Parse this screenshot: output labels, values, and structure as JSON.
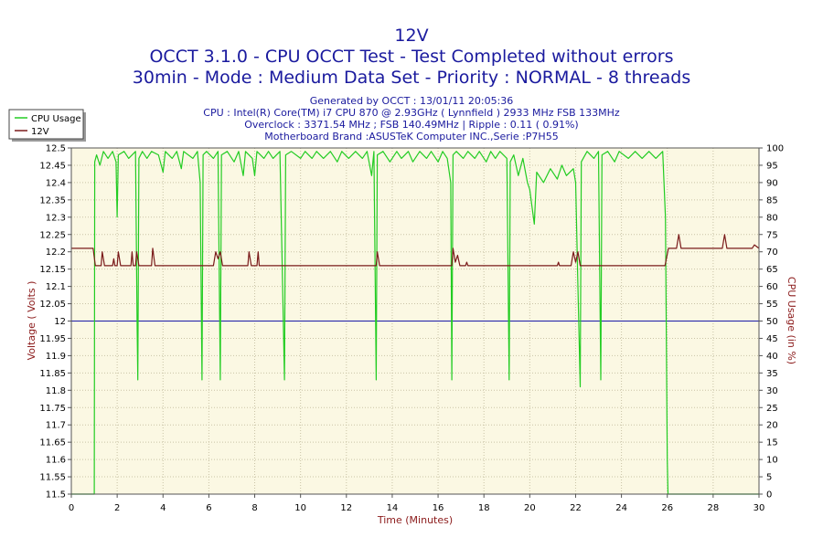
{
  "chart_data": {
    "type": "line",
    "title": "12V",
    "subtitle_lines": [
      "OCCT 3.1.0 - CPU OCCT Test - Test Completed without errors",
      "30min - Mode : Medium Data Set - Priority : NORMAL - 8 threads"
    ],
    "info_lines": [
      "Generated by OCCT : 13/01/11 20:05:36",
      "CPU : Intel(R) Core(TM) i7 CPU 870 @ 2.93GHz ( Lynnfield ) 2933 MHz FSB 133MHz",
      "Overclock : 3371.54 MHz ; FSB 140.49MHz | Ripple : 0.11 ( 0.91%)",
      "Motherboard Brand :ASUSTeK Computer INC.,Serie :P7H55"
    ],
    "xlabel": "Time (Minutes)",
    "ylabel": "Voltage ( Volts )",
    "y2label": "CPU Usage (in %)",
    "xlim": [
      0,
      30
    ],
    "ylim": [
      11.5,
      12.5
    ],
    "y2lim": [
      0,
      100
    ],
    "x_ticks": [
      "0",
      "2",
      "4",
      "6",
      "8",
      "10",
      "12",
      "14",
      "16",
      "18",
      "20",
      "22",
      "24",
      "26",
      "28",
      "30"
    ],
    "y_ticks": [
      "11.5",
      "11.55",
      "11.6",
      "11.65",
      "11.7",
      "11.75",
      "11.8",
      "11.85",
      "11.9",
      "11.95",
      "12",
      "12.05",
      "12.1",
      "12.15",
      "12.2",
      "12.25",
      "12.3",
      "12.35",
      "12.4",
      "12.45",
      "12.5"
    ],
    "y2_ticks": [
      "0",
      "5",
      "10",
      "15",
      "20",
      "25",
      "30",
      "35",
      "40",
      "45",
      "50",
      "55",
      "60",
      "65",
      "70",
      "75",
      "80",
      "85",
      "90",
      "95",
      "100"
    ],
    "reference_line": 12.0,
    "grid": true,
    "legend_position": "top-left",
    "series": [
      {
        "name": "CPU Usage",
        "axis": "right",
        "color": "#22cc22",
        "points": [
          [
            0,
            0
          ],
          [
            0.9,
            0
          ],
          [
            1.0,
            0
          ],
          [
            1.02,
            96
          ],
          [
            1.1,
            98
          ],
          [
            1.25,
            95
          ],
          [
            1.4,
            99
          ],
          [
            1.6,
            97
          ],
          [
            1.8,
            99
          ],
          [
            1.95,
            96
          ],
          [
            2.0,
            80
          ],
          [
            2.05,
            98
          ],
          [
            2.3,
            99
          ],
          [
            2.5,
            97
          ],
          [
            2.8,
            99
          ],
          [
            2.87,
            50
          ],
          [
            2.9,
            33
          ],
          [
            2.95,
            97
          ],
          [
            3.1,
            99
          ],
          [
            3.3,
            97
          ],
          [
            3.5,
            99
          ],
          [
            3.8,
            98
          ],
          [
            4.0,
            93
          ],
          [
            4.1,
            99
          ],
          [
            4.4,
            97
          ],
          [
            4.6,
            99
          ],
          [
            4.8,
            94
          ],
          [
            4.9,
            99
          ],
          [
            5.3,
            97
          ],
          [
            5.5,
            99
          ],
          [
            5.62,
            90
          ],
          [
            5.7,
            33
          ],
          [
            5.75,
            98
          ],
          [
            5.9,
            99
          ],
          [
            6.2,
            97
          ],
          [
            6.4,
            99
          ],
          [
            6.5,
            33
          ],
          [
            6.55,
            98
          ],
          [
            6.8,
            99
          ],
          [
            7.1,
            96
          ],
          [
            7.3,
            99
          ],
          [
            7.5,
            92
          ],
          [
            7.6,
            99
          ],
          [
            7.9,
            97
          ],
          [
            8.0,
            92
          ],
          [
            8.1,
            99
          ],
          [
            8.4,
            97
          ],
          [
            8.6,
            99
          ],
          [
            8.8,
            97
          ],
          [
            9.1,
            99
          ],
          [
            9.3,
            33
          ],
          [
            9.35,
            98
          ],
          [
            9.6,
            99
          ],
          [
            10.0,
            97
          ],
          [
            10.2,
            99
          ],
          [
            10.5,
            97
          ],
          [
            10.7,
            99
          ],
          [
            11.0,
            97
          ],
          [
            11.3,
            99
          ],
          [
            11.6,
            96
          ],
          [
            11.8,
            99
          ],
          [
            12.1,
            97
          ],
          [
            12.4,
            99
          ],
          [
            12.7,
            97
          ],
          [
            12.9,
            99
          ],
          [
            13.1,
            92
          ],
          [
            13.2,
            99
          ],
          [
            13.3,
            33
          ],
          [
            13.35,
            98
          ],
          [
            13.6,
            99
          ],
          [
            13.9,
            96
          ],
          [
            14.2,
            99
          ],
          [
            14.4,
            97
          ],
          [
            14.7,
            99
          ],
          [
            14.9,
            96
          ],
          [
            15.2,
            99
          ],
          [
            15.5,
            97
          ],
          [
            15.7,
            99
          ],
          [
            16.0,
            96
          ],
          [
            16.2,
            99
          ],
          [
            16.4,
            97
          ],
          [
            16.55,
            90
          ],
          [
            16.6,
            33
          ],
          [
            16.65,
            98
          ],
          [
            16.8,
            99
          ],
          [
            17.1,
            97
          ],
          [
            17.3,
            99
          ],
          [
            17.6,
            97
          ],
          [
            17.8,
            99
          ],
          [
            18.1,
            96
          ],
          [
            18.3,
            99
          ],
          [
            18.5,
            97
          ],
          [
            18.7,
            99
          ],
          [
            19.0,
            97
          ],
          [
            19.1,
            33
          ],
          [
            19.15,
            96
          ],
          [
            19.3,
            98
          ],
          [
            19.5,
            92
          ],
          [
            19.7,
            97
          ],
          [
            19.9,
            90
          ],
          [
            20.0,
            88
          ],
          [
            20.2,
            78
          ],
          [
            20.3,
            93
          ],
          [
            20.6,
            90
          ],
          [
            20.9,
            94
          ],
          [
            21.2,
            91
          ],
          [
            21.4,
            95
          ],
          [
            21.6,
            92
          ],
          [
            21.9,
            94
          ],
          [
            22.0,
            90
          ],
          [
            22.1,
            60
          ],
          [
            22.2,
            31
          ],
          [
            22.25,
            96
          ],
          [
            22.5,
            99
          ],
          [
            22.8,
            97
          ],
          [
            23.0,
            99
          ],
          [
            23.1,
            33
          ],
          [
            23.15,
            98
          ],
          [
            23.4,
            99
          ],
          [
            23.7,
            96
          ],
          [
            23.9,
            99
          ],
          [
            24.3,
            97
          ],
          [
            24.6,
            99
          ],
          [
            24.9,
            97
          ],
          [
            25.2,
            99
          ],
          [
            25.5,
            97
          ],
          [
            25.8,
            99
          ],
          [
            25.92,
            80
          ],
          [
            26.0,
            10
          ],
          [
            26.03,
            0
          ],
          [
            30,
            0
          ]
        ]
      },
      {
        "name": "12V",
        "axis": "left",
        "color": "#7a1a1a",
        "points": [
          [
            0,
            12.21
          ],
          [
            0.95,
            12.21
          ],
          [
            1.05,
            12.16
          ],
          [
            1.3,
            12.16
          ],
          [
            1.35,
            12.2
          ],
          [
            1.45,
            12.16
          ],
          [
            1.8,
            12.16
          ],
          [
            1.85,
            12.18
          ],
          [
            1.9,
            12.16
          ],
          [
            2.0,
            12.16
          ],
          [
            2.05,
            12.2
          ],
          [
            2.15,
            12.16
          ],
          [
            2.6,
            12.16
          ],
          [
            2.65,
            12.2
          ],
          [
            2.7,
            12.16
          ],
          [
            2.8,
            12.16
          ],
          [
            2.85,
            12.2
          ],
          [
            2.95,
            12.16
          ],
          [
            3.5,
            12.16
          ],
          [
            3.55,
            12.21
          ],
          [
            3.65,
            12.16
          ],
          [
            6.2,
            12.16
          ],
          [
            6.3,
            12.2
          ],
          [
            6.4,
            12.18
          ],
          [
            6.5,
            12.2
          ],
          [
            6.6,
            12.16
          ],
          [
            7.7,
            12.16
          ],
          [
            7.75,
            12.2
          ],
          [
            7.85,
            12.16
          ],
          [
            8.1,
            12.16
          ],
          [
            8.15,
            12.2
          ],
          [
            8.2,
            12.16
          ],
          [
            13.3,
            12.16
          ],
          [
            13.35,
            12.2
          ],
          [
            13.45,
            12.16
          ],
          [
            16.6,
            12.16
          ],
          [
            16.65,
            12.21
          ],
          [
            16.75,
            12.17
          ],
          [
            16.85,
            12.19
          ],
          [
            16.95,
            12.16
          ],
          [
            17.2,
            12.16
          ],
          [
            17.25,
            12.17
          ],
          [
            17.3,
            12.16
          ],
          [
            21.2,
            12.16
          ],
          [
            21.25,
            12.17
          ],
          [
            21.3,
            12.16
          ],
          [
            21.8,
            12.16
          ],
          [
            21.9,
            12.2
          ],
          [
            22.0,
            12.17
          ],
          [
            22.1,
            12.2
          ],
          [
            22.2,
            12.16
          ],
          [
            25.9,
            12.16
          ],
          [
            26.05,
            12.21
          ],
          [
            26.4,
            12.21
          ],
          [
            26.5,
            12.25
          ],
          [
            26.6,
            12.21
          ],
          [
            28.4,
            12.21
          ],
          [
            28.5,
            12.25
          ],
          [
            28.6,
            12.21
          ],
          [
            29.7,
            12.21
          ],
          [
            29.8,
            12.22
          ],
          [
            30,
            12.21
          ]
        ]
      }
    ]
  }
}
